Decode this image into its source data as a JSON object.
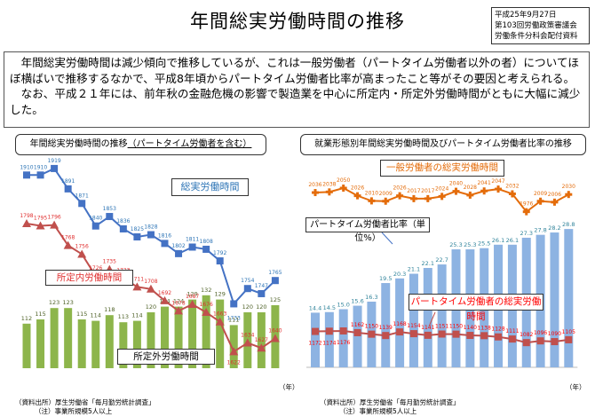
{
  "header": {
    "title": "年間総実労働時間の推移",
    "meta": [
      "平成25年9月27日",
      "第103回労働政策審議会",
      "労働条件分科会配付資料"
    ]
  },
  "summary": {
    "paragraphs": [
      "年間総実労働時間は減少傾向で推移しているが、これは一般労働者（パートタイム労働者以外の者）についてほぼ横ばいで推移するなかで、平成8年頃からパートタイム労働者比率が高まったこと等がその要因と考えられる。",
      "なお、平成２１年には、前年秋の金融危機の影響で製造業を中心に所定内・所定外労働時間がともに大幅に減少した。"
    ]
  },
  "chart_data": [
    {
      "type": "line+bar",
      "title": "年間総実労働時間の推移",
      "title_suffix": "（パートタイム労働者を含む）",
      "categories": [
        "6",
        "7",
        "8",
        "9",
        "10",
        "11",
        "12",
        "13",
        "14",
        "15",
        "16",
        "17",
        "18",
        "19",
        "20",
        "21",
        "22",
        "23",
        "24"
      ],
      "xlabel": "",
      "series": [
        {
          "name": "総実労働時間",
          "type": "line",
          "marker": "square",
          "color": "#4472c4",
          "label_color": "#2e75b6",
          "values": [
            1910,
            1910,
            1919,
            1891,
            1871,
            1840,
            1853,
            1836,
            1825,
            1828,
            1816,
            1802,
            1811,
            1808,
            1792,
            1733,
            1754,
            1747,
            1765
          ]
        },
        {
          "name": "所定内労働時間",
          "type": "line",
          "marker": "triangle",
          "color": "#c0504d",
          "label_color": "#e03030",
          "values": [
            1798,
            1795,
            1796,
            1768,
            1756,
            1726,
            1735,
            1723,
            1711,
            1708,
            1692,
            1678,
            1687,
            1676,
            1663,
            1622,
            1634,
            1627,
            1640
          ]
        },
        {
          "name": "所定外労働時間",
          "type": "bar",
          "color": "#8db54b",
          "label_color": "#4f6228",
          "values": [
            112,
            115,
            123,
            123,
            115,
            114,
            118,
            113,
            114,
            120,
            124,
            124,
            129,
            132,
            129,
            111,
            120,
            120,
            125
          ]
        }
      ],
      "source": [
        "（資料出所）厚生労働省「毎月勤労統計調査」",
        "（注）事業所規模5人以上"
      ],
      "unit_label": "（年）"
    },
    {
      "type": "line+bar",
      "title": "就業形態別年間総実労働時間及びパートタイム労働者比率の推移",
      "categories": [
        "6",
        "7",
        "8",
        "9",
        "10",
        "11",
        "12",
        "13",
        "14",
        "15",
        "16",
        "17",
        "18",
        "19",
        "20",
        "21",
        "22",
        "23",
        "24"
      ],
      "series": [
        {
          "name": "一般労働者の総実労働時間",
          "type": "line",
          "marker": "plus",
          "color": "#e46c0a",
          "label_color": "#e46c0a",
          "values": [
            2036,
            2038,
            2050,
            2026,
            2010,
            2009,
            2026,
            2017,
            2017,
            2024,
            2040,
            2028,
            2041,
            2047,
            2032,
            1976,
            2009,
            2006,
            2030
          ]
        },
        {
          "name": "パートタイム労働者比率（単位%）",
          "type": "bar",
          "color": "#8db3e2",
          "label_color": "#31849b",
          "values": [
            14.4,
            14.5,
            15.0,
            15.6,
            16.3,
            19.5,
            20.3,
            21.1,
            22.1,
            22.7,
            25.3,
            25.3,
            25.5,
            26.1,
            26.1,
            27.3,
            27.8,
            28.2,
            28.8
          ]
        },
        {
          "name": "パートタイム労働者の総実労働時間",
          "type": "line",
          "marker": "square",
          "color": "#c0504d",
          "label_color": "#ff0000",
          "values": [
            1172,
            1174,
            1176,
            1162,
            1150,
            1139,
            1168,
            1154,
            1141,
            1151,
            1150,
            1140,
            1138,
            1128,
            1111,
            1082,
            1096,
            1090,
            1105
          ]
        }
      ],
      "source": [
        "（資料出所）厚生労働省「毎月勤労統計調査」",
        "（注）事業所規模5人以上"
      ],
      "unit_label": "（年）"
    }
  ]
}
